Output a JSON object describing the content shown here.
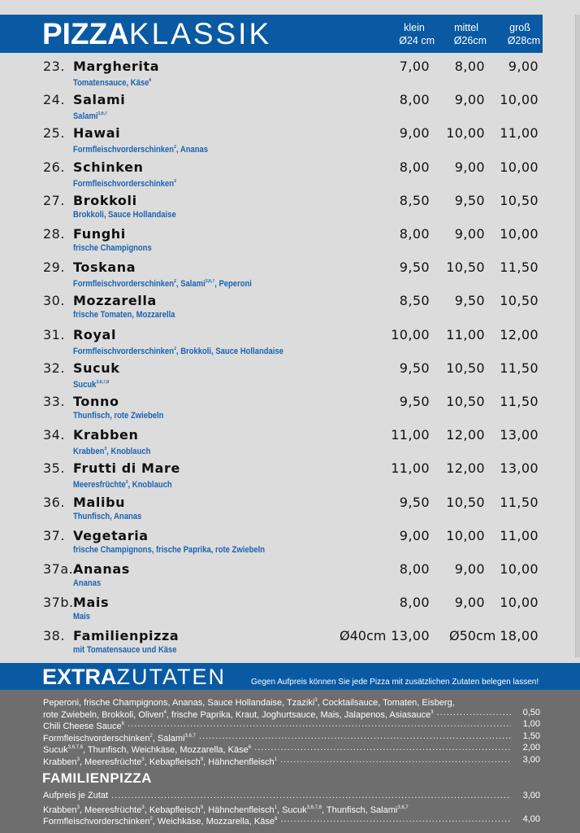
{
  "header": {
    "title_bold": "PIZZA",
    "title_light": "KLASSIK",
    "sizes": [
      {
        "label": "klein",
        "diameter": "Ø24 cm"
      },
      {
        "label": "mittel",
        "diameter": "Ø26cm"
      },
      {
        "label": "groß",
        "diameter": "Ø28cm"
      }
    ]
  },
  "pizzas": [
    {
      "num": "23.",
      "name": "Margherita",
      "desc": "Tomatensauce, Käse<sup>6</sup>",
      "prices": [
        "7,00",
        "8,00",
        "9,00"
      ]
    },
    {
      "num": "24.",
      "name": "Salami",
      "desc": "Salami<sup>3,6,7</sup>",
      "prices": [
        "8,00",
        "9,00",
        "10,00"
      ]
    },
    {
      "num": "25.",
      "name": "Hawai",
      "desc": "Formfleischvorderschinken<sup>2</sup>, Ananas",
      "prices": [
        "9,00",
        "10,00",
        "11,00"
      ]
    },
    {
      "num": "26.",
      "name": "Schinken",
      "desc": "Formfleischvorderschinken<sup>2</sup>",
      "prices": [
        "8,00",
        "9,00",
        "10,00"
      ]
    },
    {
      "num": "27.",
      "name": "Brokkoli",
      "desc": "Brokkoli, Sauce Hollandaise",
      "prices": [
        "8,50",
        "9,50",
        "10,50"
      ]
    },
    {
      "num": "28.",
      "name": "Funghi",
      "desc": "frische Champignons",
      "prices": [
        "8,00",
        "9,00",
        "10,00"
      ]
    },
    {
      "num": "29.",
      "name": "Toskana",
      "desc": "Formfleischvorderschinken<sup>2</sup>, Salami<sup>3,6,7</sup>, Peperoni",
      "prices": [
        "9,50",
        "10,50",
        "11,50"
      ]
    },
    {
      "num": "30.",
      "name": "Mozzarella",
      "desc": "frische Tomaten, Mozzarella",
      "prices": [
        "8,50",
        "9,50",
        "10,50"
      ]
    },
    {
      "num": "31.",
      "name": "Royal",
      "desc": "Formfleischvorderschinken<sup>2</sup>, Brokkoli, Sauce Hollandaise",
      "prices": [
        "10,00",
        "11,00",
        "12,00"
      ]
    },
    {
      "num": "32.",
      "name": "Sucuk",
      "desc": "Sucuk<sup>3,6,7,8</sup>",
      "prices": [
        "9,50",
        "10,50",
        "11,50"
      ]
    },
    {
      "num": "33.",
      "name": "Tonno",
      "desc": "Thunfisch, rote Zwiebeln",
      "prices": [
        "9,50",
        "10,50",
        "11,50"
      ]
    },
    {
      "num": "34.",
      "name": "Krabben",
      "desc": "Krabben<sup>3</sup>, Knoblauch",
      "prices": [
        "11,00",
        "12,00",
        "13,00"
      ]
    },
    {
      "num": "35.",
      "name": "Frutti di Mare",
      "desc": "Meeresfrüchte<sup>3</sup>, Knoblauch",
      "prices": [
        "11,00",
        "12,00",
        "13,00"
      ]
    },
    {
      "num": "36.",
      "name": "Malibu",
      "desc": "Thunfisch, Ananas",
      "prices": [
        "9,50",
        "10,50",
        "11,50"
      ]
    },
    {
      "num": "37.",
      "name": "Vegetaria",
      "desc": "frische Champignons, frische Paprika, rote Zwiebeln",
      "prices": [
        "9,00",
        "10,00",
        "11,00"
      ]
    },
    {
      "num": "37a.",
      "name": "Ananas",
      "desc": "Ananas",
      "prices": [
        "8,00",
        "9,00",
        "10,00"
      ]
    },
    {
      "num": "37b.",
      "name": "Mais",
      "desc": "Mais",
      "prices": [
        "8,00",
        "9,00",
        "10,00"
      ]
    }
  ],
  "family": {
    "num": "38.",
    "name": "Familienpizza",
    "desc": "mit Tomatensauce und Käse",
    "size1": "Ø40cm",
    "price1": "13,00",
    "size2": "Ø50cm",
    "price2": "18,00"
  },
  "extras": {
    "title_bold": "EXTRA",
    "title_light": "ZUTATEN",
    "note": "Gegen Aufpreis können Sie jede Pizza mit zusätzlichen Zutaten belegen lassen!",
    "lines": [
      {
        "text": "Peperoni, frische Champignons, Ananas, Sauce Hollandaise, Tzaziki<sup>3</sup>, Cocktailsauce, Tomaten, Eisberg,",
        "price": ""
      },
      {
        "text": "rote Zwiebeln, Brokkoli, Oliven<sup>4</sup>, frische Paprika, Kraut, Joghurtsauce, Mais, Jalapenos, Asiasauce<sup>3</sup>",
        "price": "0,50"
      },
      {
        "text": "Chili Cheese Sauce<sup>6</sup>",
        "price": "1,00"
      },
      {
        "text": "Formfleischvorderschinken<sup>2</sup>, Salami<sup>3,6,7</sup>",
        "price": "1,50"
      },
      {
        "text": "Sucuk<sup>3,6,7,8</sup>, Thunfisch, Weichkäse, Mozzarella, Käse<sup>6</sup>",
        "price": "2,00"
      },
      {
        "text": "Krabben<sup>3</sup>, Meeresfrüchte<sup>3</sup>, Kebapfleisch<sup>9</sup>, Hähnchenfleisch<sup>1</sup>",
        "price": "3,00"
      }
    ],
    "family_title": "FAMILIENPIZZA",
    "family_lines": [
      {
        "text": "Aufpreis je Zutat",
        "price": "3,00"
      },
      {
        "text": "Krabben<sup>3</sup>, Meeresfrüchte<sup>3</sup>, Kebapfleisch<sup>9</sup>, Hähnchenfleisch<sup>1</sup>, Sucuk<sup>3,6,7,8</sup>, Thunfisch, Salami<sup>3,6,7</sup>",
        "price": ""
      },
      {
        "text": "Formfleischvorderschinken<sup>2</sup>, Weichkäse, Mozzarella, Käse<sup>6</sup>",
        "price": "4,00"
      }
    ]
  },
  "colors": {
    "brand_blue": "#0a5aa3",
    "desc_blue": "#1b63b0",
    "page_bg": "#dcdcdc",
    "extras_panel": "#6e6e6e"
  }
}
